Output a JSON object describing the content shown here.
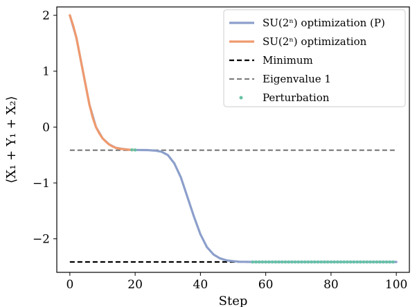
{
  "chart_data": {
    "type": "line",
    "xlabel": "Step",
    "ylabel": "⟨X₁ + Y₁ + X₂⟩",
    "xlim": [
      -4,
      104
    ],
    "ylim": [
      -2.6,
      2.15
    ],
    "xticks": [
      0,
      20,
      40,
      60,
      80,
      100
    ],
    "xtick_labels": [
      "0",
      "20",
      "40",
      "60",
      "80",
      "100"
    ],
    "yticks": [
      -2,
      -1,
      0,
      1,
      2
    ],
    "ytick_labels": [
      "−2",
      "−1",
      "0",
      "1",
      "2"
    ],
    "grid": false,
    "legend_position": "top-right",
    "series": [
      {
        "name": "SU(2ⁿ) optimization (P)",
        "kind": "line",
        "color": "#8c9fcb",
        "x": [
          0,
          2,
          4,
          6,
          8,
          10,
          12,
          14,
          16,
          18,
          20,
          22,
          24,
          26,
          28,
          30,
          32,
          34,
          36,
          38,
          40,
          42,
          44,
          46,
          48,
          50,
          52,
          54,
          56,
          58,
          60,
          70,
          80,
          90,
          100
        ],
        "y": [
          2.0,
          1.6,
          1.0,
          0.4,
          0.0,
          -0.2,
          -0.31,
          -0.37,
          -0.39,
          -0.405,
          -0.41,
          -0.411,
          -0.413,
          -0.42,
          -0.44,
          -0.5,
          -0.65,
          -0.9,
          -1.25,
          -1.6,
          -1.92,
          -2.15,
          -2.28,
          -2.35,
          -2.385,
          -2.4,
          -2.41,
          -2.412,
          -2.414,
          -2.414,
          -2.414,
          -2.414,
          -2.414,
          -2.414,
          -2.414
        ]
      },
      {
        "name": "SU(2ⁿ) optimization",
        "kind": "line",
        "color": "#f09a6e",
        "x": [
          0,
          1,
          2,
          3,
          4,
          5,
          6,
          7,
          8,
          9,
          10,
          11,
          12,
          13,
          14,
          15,
          16,
          17,
          18,
          19,
          20
        ],
        "y": [
          2.0,
          1.82,
          1.6,
          1.3,
          1.0,
          0.7,
          0.4,
          0.17,
          0.0,
          -0.11,
          -0.2,
          -0.26,
          -0.31,
          -0.345,
          -0.37,
          -0.383,
          -0.393,
          -0.4,
          -0.405,
          -0.408,
          -0.41
        ]
      },
      {
        "name": "Minimum",
        "kind": "hline",
        "color": "#000000",
        "y": -2.414,
        "x_range": [
          0,
          100
        ]
      },
      {
        "name": "Eigenvalue 1",
        "kind": "hline",
        "color": "#7f7f7f",
        "y": -0.414,
        "x_range": [
          0,
          100
        ]
      },
      {
        "name": "Perturbation",
        "kind": "scatter",
        "color": "#66c2a5",
        "x": [
          19,
          20,
          56,
          57,
          58,
          59,
          60,
          61,
          62,
          63,
          64,
          65,
          66,
          67,
          68,
          69,
          70,
          71,
          72,
          73,
          74,
          75,
          76,
          77,
          78,
          79,
          80,
          81,
          82,
          83,
          84,
          85,
          86,
          87,
          88,
          89,
          90,
          91,
          92,
          93,
          94,
          95,
          96,
          97,
          98,
          99
        ],
        "y": [
          -0.408,
          -0.41,
          -2.414,
          -2.414,
          -2.414,
          -2.414,
          -2.414,
          -2.414,
          -2.414,
          -2.414,
          -2.414,
          -2.414,
          -2.414,
          -2.414,
          -2.414,
          -2.414,
          -2.414,
          -2.414,
          -2.414,
          -2.414,
          -2.414,
          -2.414,
          -2.414,
          -2.414,
          -2.414,
          -2.414,
          -2.414,
          -2.414,
          -2.414,
          -2.414,
          -2.414,
          -2.414,
          -2.414,
          -2.414,
          -2.414,
          -2.414,
          -2.414,
          -2.414,
          -2.414,
          -2.414,
          -2.414,
          -2.414,
          -2.414,
          -2.414,
          -2.414,
          -2.414
        ]
      }
    ]
  }
}
